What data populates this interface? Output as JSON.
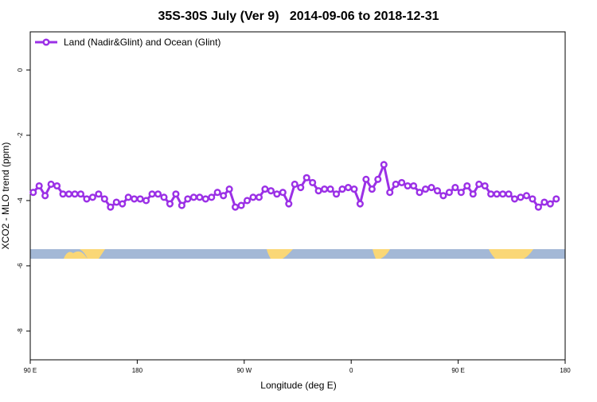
{
  "chart_data": {
    "type": "line",
    "title": "35S-30S July (Ver 9)   2014-09-06 to 2018-12-31",
    "xlabel": "Longitude (deg E)",
    "ylabel": "XCO2 - MLO trend (ppm)",
    "xlim": [
      90,
      540
    ],
    "xticks": [
      {
        "value": 90,
        "label": "90 E"
      },
      180,
      {
        "value": 270,
        "label": "90 W"
      },
      {
        "value": 360,
        "label": "0"
      },
      {
        "value": 450,
        "label": "90 E"
      },
      {
        "value": 540,
        "label": "180"
      }
    ],
    "ylim": [
      -8.88,
      1.17
    ],
    "yticks": [
      0,
      -2,
      -4,
      -6,
      -8
    ],
    "grid": false,
    "legend": "upper left",
    "x": [
      92.5,
      97.5,
      102.5,
      107.5,
      112.5,
      117.5,
      122.5,
      127.5,
      132.5,
      137.5,
      142.5,
      147.5,
      152.5,
      157.5,
      162.5,
      167.5,
      172.5,
      177.5,
      182.5,
      187.5,
      192.5,
      197.5,
      202.5,
      207.5,
      212.5,
      217.5,
      222.5,
      227.5,
      232.5,
      237.5,
      242.5,
      247.5,
      252.5,
      257.5,
      262.5,
      267.5,
      272.5,
      277.5,
      282.5,
      287.5,
      292.5,
      297.5,
      302.5,
      307.5,
      312.5,
      317.5,
      322.5,
      327.5,
      332.5,
      337.5,
      342.5,
      347.5,
      352.5,
      357.5,
      362.5,
      367.5,
      372.5,
      377.5,
      382.5,
      387.5,
      392.5,
      397.5,
      402.5,
      407.5,
      412.5,
      417.5,
      422.5,
      427.5,
      432.5,
      437.5,
      442.5,
      447.5,
      452.5,
      457.5,
      462.5,
      467.5,
      472.5,
      477.5,
      482.5,
      487.5,
      492.5,
      497.5,
      502.5,
      507.5,
      512.5,
      517.5,
      522.5,
      527.5,
      532.5
    ],
    "series": [
      {
        "name": "Land (Nadir&Glint) and Ocean (Glint)",
        "color": "#9b30e6",
        "values": [
          -3.75,
          -3.55,
          -3.85,
          -3.5,
          -3.55,
          -3.8,
          -3.8,
          -3.8,
          -3.8,
          -3.95,
          -3.9,
          -3.8,
          -3.95,
          -4.2,
          -4.05,
          -4.1,
          -3.9,
          -3.95,
          -3.95,
          -4.0,
          -3.8,
          -3.8,
          -3.9,
          -4.1,
          -3.8,
          -4.15,
          -3.95,
          -3.9,
          -3.9,
          -3.95,
          -3.9,
          -3.75,
          -3.85,
          -3.65,
          -4.2,
          -4.15,
          -4.0,
          -3.9,
          -3.9,
          -3.65,
          -3.7,
          -3.8,
          -3.75,
          -4.1,
          -3.5,
          -3.6,
          -3.3,
          -3.45,
          -3.7,
          -3.65,
          -3.65,
          -3.8,
          -3.65,
          -3.6,
          -3.65,
          -4.1,
          -3.35,
          -3.65,
          -3.35,
          -2.9,
          -3.75,
          -3.5,
          -3.45,
          -3.55,
          -3.55,
          -3.75,
          -3.65,
          -3.6,
          -3.7,
          -3.85,
          -3.75,
          -3.6,
          -3.75,
          -3.55,
          -3.8,
          -3.5,
          -3.55,
          -3.8,
          -3.8,
          -3.8,
          -3.8,
          -3.95,
          -3.9,
          -3.85,
          -3.95,
          -4.2,
          -4.05,
          -4.1,
          -3.95
        ]
      }
    ]
  }
}
